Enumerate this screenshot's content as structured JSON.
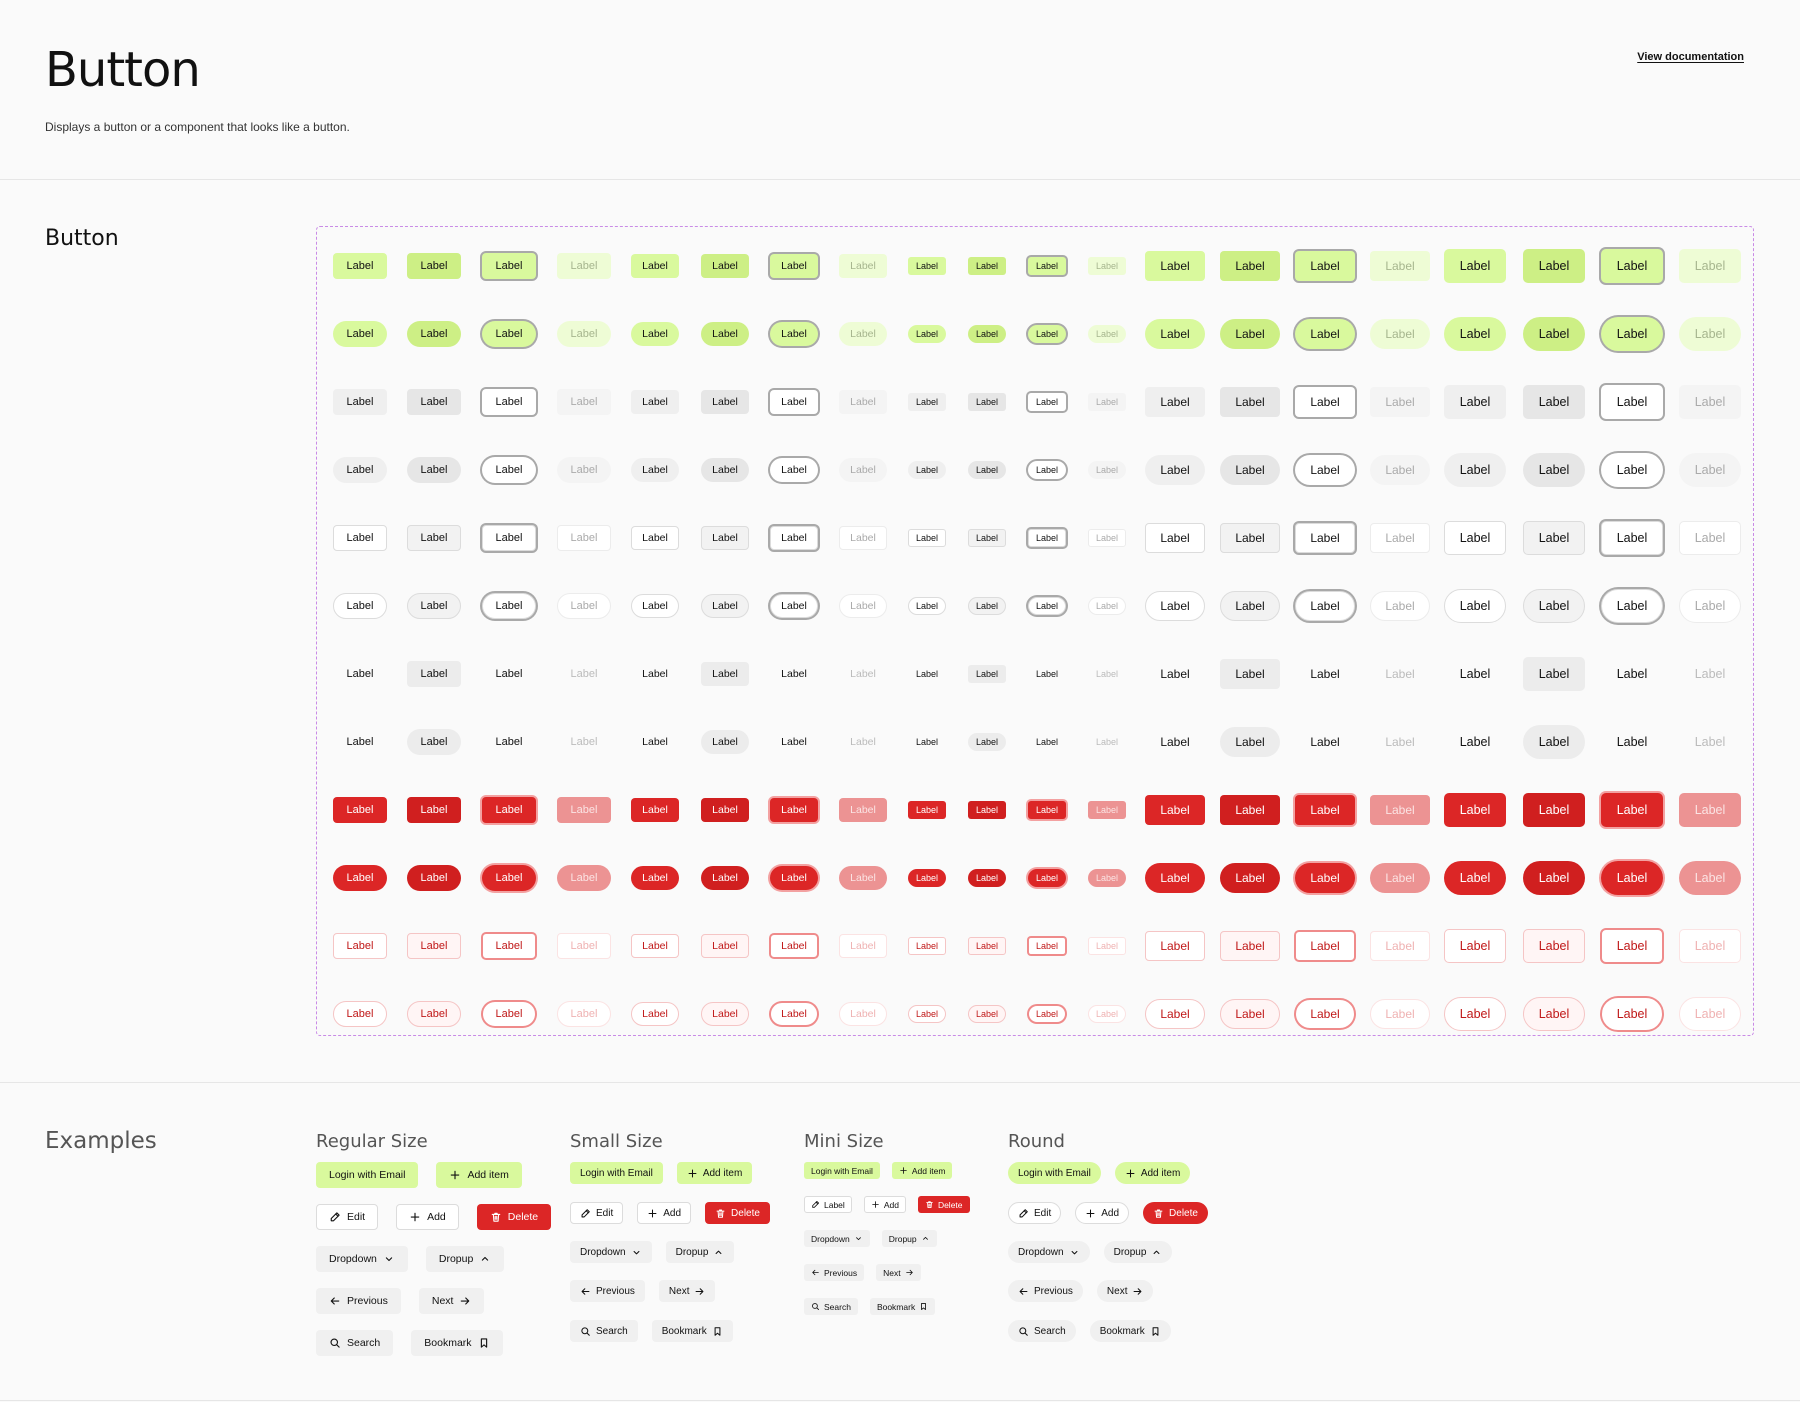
{
  "header": {
    "title": "Button",
    "description": "Displays a button or a component that looks like a button.",
    "doc_link": "View documentation"
  },
  "grid": {
    "title": "Button",
    "button_label": "Label",
    "variants": [
      "primary",
      "primary-round",
      "secondary",
      "secondary-round",
      "outline",
      "outline-round",
      "ghost",
      "ghost-round",
      "destructive",
      "destructive-round",
      "destructive-outline",
      "destructive-outline-round"
    ],
    "states": [
      "default",
      "hover",
      "focus",
      "disabled"
    ],
    "sizes": [
      "medium",
      "small",
      "mini",
      "large",
      "extra-large"
    ]
  },
  "examples": {
    "title": "Examples",
    "groups": [
      {
        "title": "Regular Size",
        "rows": [
          [
            {
              "label": "Login with Email",
              "style": "primary"
            },
            {
              "label": "Add item",
              "style": "primary",
              "icon": "plus"
            }
          ],
          [
            {
              "label": "Edit",
              "style": "outline",
              "icon": "pencil"
            },
            {
              "label": "Add",
              "style": "outline",
              "icon": "plus"
            },
            {
              "label": "Delete",
              "style": "destructive",
              "icon": "trash"
            }
          ],
          [
            {
              "label": "Dropdown",
              "style": "secondary",
              "icon_after": "chevron-down"
            },
            {
              "label": "Dropup",
              "style": "secondary",
              "icon_after": "chevron-up"
            }
          ],
          [
            {
              "label": "Previous",
              "style": "secondary",
              "icon": "arrow-left"
            },
            {
              "label": "Next",
              "style": "secondary",
              "icon_after": "arrow-right"
            }
          ],
          [
            {
              "label": "Search",
              "style": "secondary",
              "icon": "search"
            },
            {
              "label": "Bookmark",
              "style": "secondary",
              "icon_after": "bookmark"
            }
          ]
        ]
      },
      {
        "title": "Small Size",
        "rows": [
          [
            {
              "label": "Login with Email",
              "style": "primary"
            },
            {
              "label": "Add item",
              "style": "primary",
              "icon": "plus"
            }
          ],
          [
            {
              "label": "Edit",
              "style": "outline",
              "icon": "pencil"
            },
            {
              "label": "Add",
              "style": "outline",
              "icon": "plus"
            },
            {
              "label": "Delete",
              "style": "destructive",
              "icon": "trash"
            }
          ],
          [
            {
              "label": "Dropdown",
              "style": "secondary",
              "icon_after": "chevron-down"
            },
            {
              "label": "Dropup",
              "style": "secondary",
              "icon_after": "chevron-up"
            }
          ],
          [
            {
              "label": "Previous",
              "style": "secondary",
              "icon": "arrow-left"
            },
            {
              "label": "Next",
              "style": "secondary",
              "icon_after": "arrow-right"
            }
          ],
          [
            {
              "label": "Search",
              "style": "secondary",
              "icon": "search"
            },
            {
              "label": "Bookmark",
              "style": "secondary",
              "icon_after": "bookmark"
            }
          ]
        ]
      },
      {
        "title": "Mini Size",
        "rows": [
          [
            {
              "label": "Login with Email",
              "style": "primary"
            },
            {
              "label": "Add item",
              "style": "primary",
              "icon": "plus"
            }
          ],
          [
            {
              "label": "Label",
              "style": "outline",
              "icon": "pencil"
            },
            {
              "label": "Add",
              "style": "outline",
              "icon": "plus"
            },
            {
              "label": "Delete",
              "style": "destructive",
              "icon": "trash"
            }
          ],
          [
            {
              "label": "Dropdown",
              "style": "secondary",
              "icon_after": "chevron-down"
            },
            {
              "label": "Dropup",
              "style": "secondary",
              "icon_after": "chevron-up"
            }
          ],
          [
            {
              "label": "Previous",
              "style": "secondary",
              "icon": "arrow-left"
            },
            {
              "label": "Next",
              "style": "secondary",
              "icon_after": "arrow-right"
            }
          ],
          [
            {
              "label": "Search",
              "style": "secondary",
              "icon": "search"
            },
            {
              "label": "Bookmark",
              "style": "secondary",
              "icon_after": "bookmark"
            }
          ]
        ]
      },
      {
        "title": "Round",
        "rows": [
          [
            {
              "label": "Login with Email",
              "style": "primary"
            },
            {
              "label": "Add item",
              "style": "primary",
              "icon": "plus"
            }
          ],
          [
            {
              "label": "Edit",
              "style": "outline",
              "icon": "pencil"
            },
            {
              "label": "Add",
              "style": "outline",
              "icon": "plus"
            },
            {
              "label": "Delete",
              "style": "destructive",
              "icon": "trash"
            }
          ],
          [
            {
              "label": "Dropdown",
              "style": "secondary",
              "icon_after": "chevron-down"
            },
            {
              "label": "Dropup",
              "style": "secondary",
              "icon_after": "chevron-up"
            }
          ],
          [
            {
              "label": "Previous",
              "style": "secondary",
              "icon": "arrow-left"
            },
            {
              "label": "Next",
              "style": "secondary",
              "icon_after": "arrow-right"
            }
          ],
          [
            {
              "label": "Search",
              "style": "secondary",
              "icon": "search"
            },
            {
              "label": "Bookmark",
              "style": "secondary",
              "icon_after": "bookmark"
            }
          ]
        ]
      }
    ]
  },
  "colors": {
    "primary": "#d9f99d",
    "destructive": "#dc2626",
    "grid_border": "#c98be6",
    "divider": "#e6e6e6"
  }
}
